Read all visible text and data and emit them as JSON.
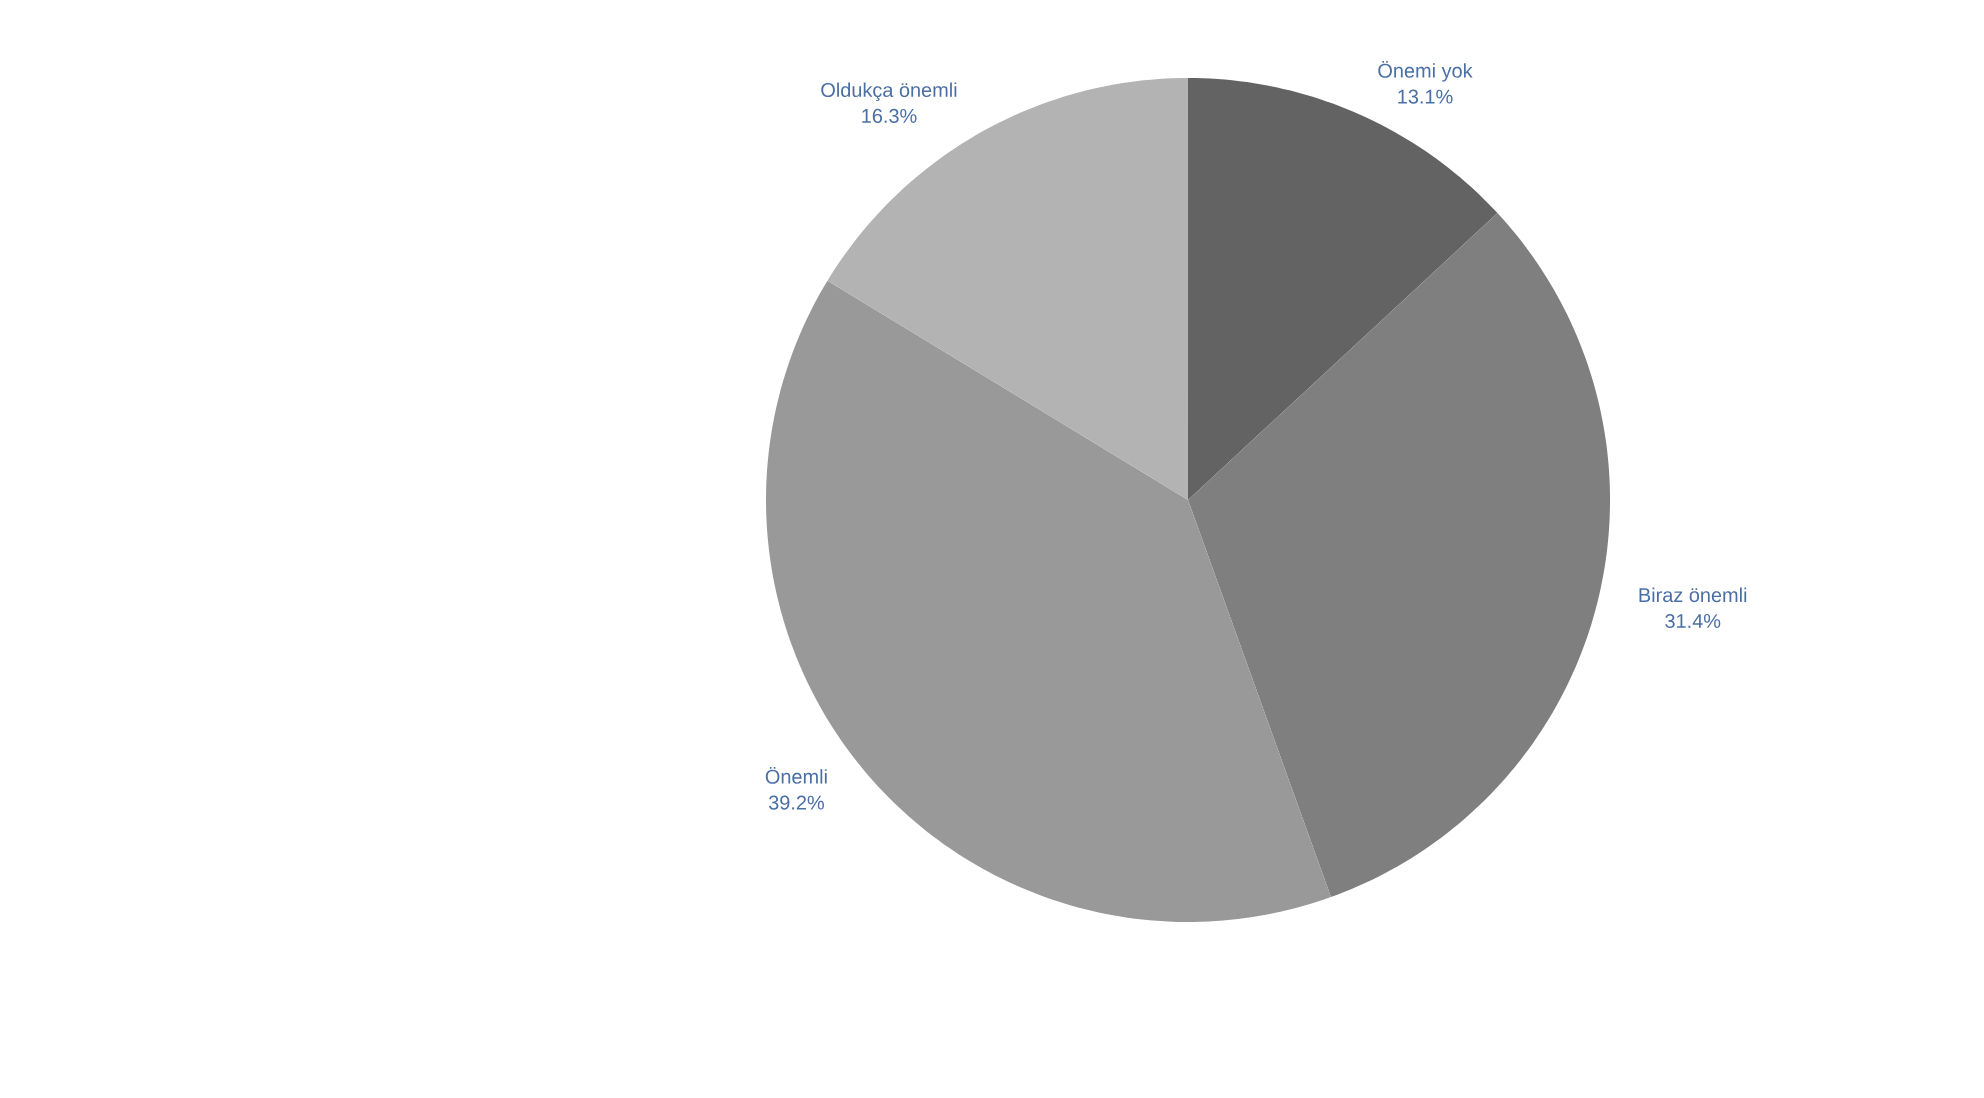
{
  "chart_data": {
    "type": "pie",
    "categories": [
      "Önemi yok",
      "Biraz önemli",
      "Önemli",
      "Oldukça önemli"
    ],
    "values": [
      13.1,
      31.4,
      39.2,
      16.3
    ],
    "value_labels": [
      "13.1%",
      "31.4%",
      "39.2%",
      "16.3%"
    ],
    "colors": [
      "#636363",
      "#7f7f7f",
      "#999999",
      "#b3b3b3"
    ]
  }
}
